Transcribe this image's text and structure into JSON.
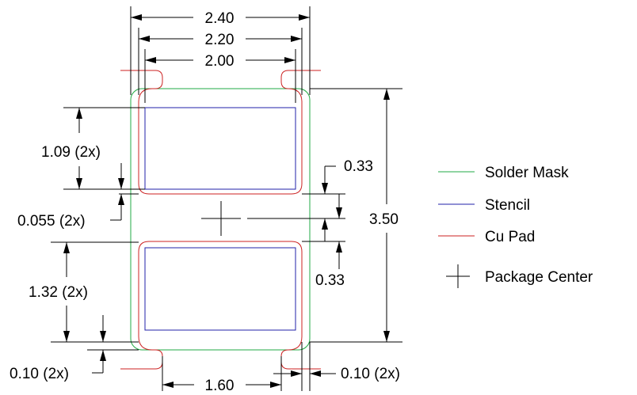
{
  "dimensions": {
    "width_240": "2.40",
    "width_220": "2.20",
    "width_200": "2.00",
    "pad_len_top": "1.09 (2x)",
    "gap_0055": "0.055 (2x)",
    "pad_len_bottom": "1.32 (2x)",
    "edge_010_left": "0.10 (2x)",
    "edge_010_right": "0.10 (2x)",
    "center_033_top": "0.33",
    "center_033_bottom": "0.33",
    "height_350": "3.50",
    "spacing_160": "1.60"
  },
  "legend": {
    "items": [
      {
        "label": "Solder Mask",
        "color": "#22aa44",
        "symbol": "line"
      },
      {
        "label": "Stencil",
        "color": "#2222aa",
        "symbol": "line"
      },
      {
        "label": "Cu Pad",
        "color": "#cc2222",
        "symbol": "line"
      },
      {
        "label": "Package Center",
        "color": "#000000",
        "symbol": "cross"
      }
    ]
  },
  "colors": {
    "solder_mask": "#22aa44",
    "stencil": "#2222aa",
    "cu_pad": "#cc2222",
    "dimension": "#000000"
  }
}
